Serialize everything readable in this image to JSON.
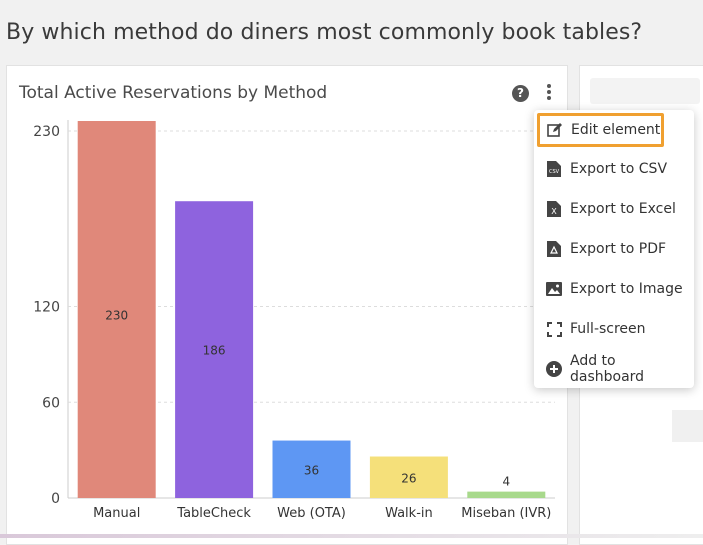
{
  "page": {
    "question": "By which method do diners most commonly book tables?"
  },
  "card": {
    "title": "Total Active Reservations by Method",
    "help_icon": "help-circle-icon",
    "menu_icon": "kebab-icon"
  },
  "menu": {
    "items": [
      {
        "label": "Edit element",
        "icon": "edit-icon",
        "highlighted": true
      },
      {
        "label": "Export to CSV",
        "icon": "csv-file-icon"
      },
      {
        "label": "Export to Excel",
        "icon": "excel-file-icon"
      },
      {
        "label": "Export to PDF",
        "icon": "pdf-file-icon"
      },
      {
        "label": "Export to Image",
        "icon": "image-icon"
      },
      {
        "label": "Full-screen",
        "icon": "fullscreen-icon"
      },
      {
        "label": "Add to dashboard",
        "icon": "add-circle-icon"
      }
    ]
  },
  "colors": {
    "highlight_border": "#f0a030",
    "grid": "#dddddd"
  },
  "chart_data": {
    "type": "bar",
    "title": "Total Active Reservations by Method",
    "categories": [
      "Manual",
      "TableCheck",
      "Web (OTA)",
      "Walk-in",
      "Miseban (IVR)"
    ],
    "values": [
      230,
      186,
      36,
      26,
      4
    ],
    "data_labels": [
      "230",
      "186",
      "36",
      "26",
      "4"
    ],
    "colors": [
      "#e0887a",
      "#8e63de",
      "#5e97f3",
      "#f5e07a",
      "#a8d98c"
    ],
    "y_ticks": [
      0,
      60,
      120,
      230
    ],
    "ylim": [
      0,
      230
    ],
    "grid": true,
    "legend": "none"
  }
}
